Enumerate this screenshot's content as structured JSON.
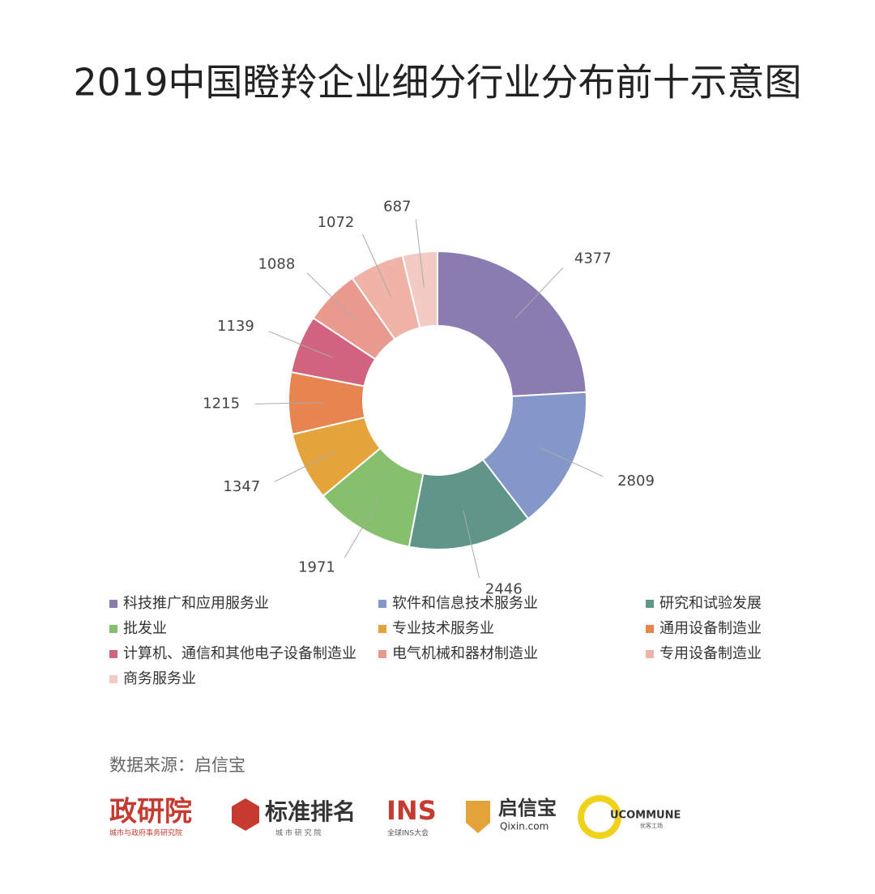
{
  "chart_data": {
    "type": "donut",
    "title": "2019中国瞪羚企业细分行业分布前十示意图",
    "categories": [
      "科技推广和应用服务业",
      "软件和信息技术服务业",
      "研究和试验发展",
      "批发业",
      "专业技术服务业",
      "通用设备制造业",
      "计算机、通信和其他电子设备制造业",
      "电气机械和器材制造业",
      "专用设备制造业",
      "商务服务业"
    ],
    "values": [
      4377,
      2809,
      2446,
      1971,
      1347,
      1215,
      1139,
      1088,
      1072,
      687
    ],
    "colors": [
      "#8a7bb1",
      "#8597c8",
      "#5f9689",
      "#86c06f",
      "#e5a33c",
      "#e8844f",
      "#d2637f",
      "#e99a8f",
      "#efb4a7",
      "#f4cac5"
    ],
    "legend": "bottom"
  },
  "source": "数据来源：启信宝",
  "logos": [
    {
      "name": "政研院",
      "sub": "城市与政府事务研究院"
    },
    {
      "name": "标准排名",
      "sub": "城 市 研 究 院"
    },
    {
      "name": "INS",
      "sub": "全球INS大会"
    },
    {
      "name": "启信宝",
      "sub": "Qixin.com"
    },
    {
      "name": "UCOMMUNE",
      "sub": "优客工场"
    }
  ]
}
